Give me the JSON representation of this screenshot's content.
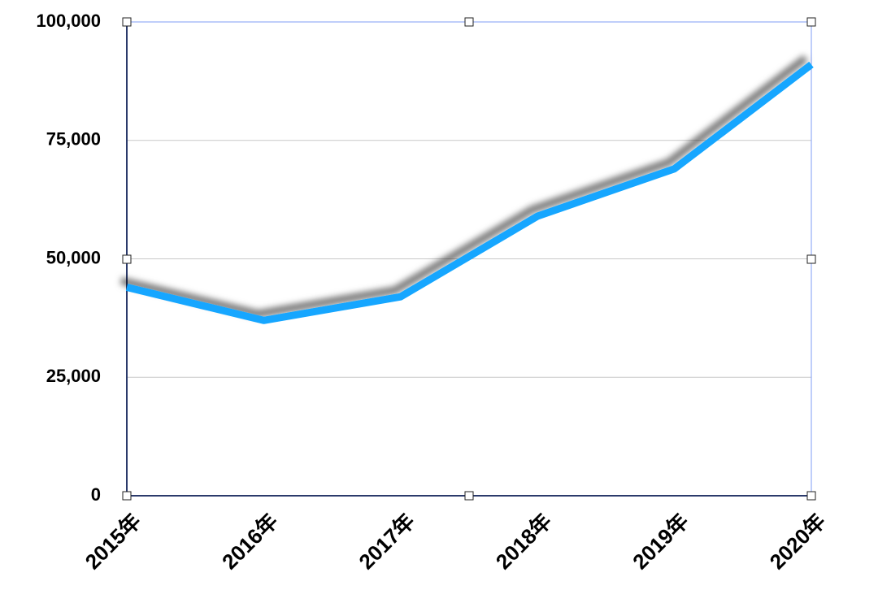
{
  "chart_data": {
    "type": "line",
    "categories": [
      "2015年",
      "2016年",
      "2017年",
      "2018年",
      "2019年",
      "2020年"
    ],
    "values": [
      44000,
      37000,
      42000,
      59000,
      69000,
      91000
    ],
    "color": "#12a6ff",
    "ylim": [
      0,
      100000
    ],
    "yticks": [
      0,
      {
        "value": 25000,
        "label": "25,000"
      },
      {
        "value": 50000,
        "label": "50,000"
      },
      {
        "value": 75000,
        "label": "75,000"
      },
      {
        "value": 100000,
        "label": "100,000"
      }
    ],
    "grid": true
  }
}
